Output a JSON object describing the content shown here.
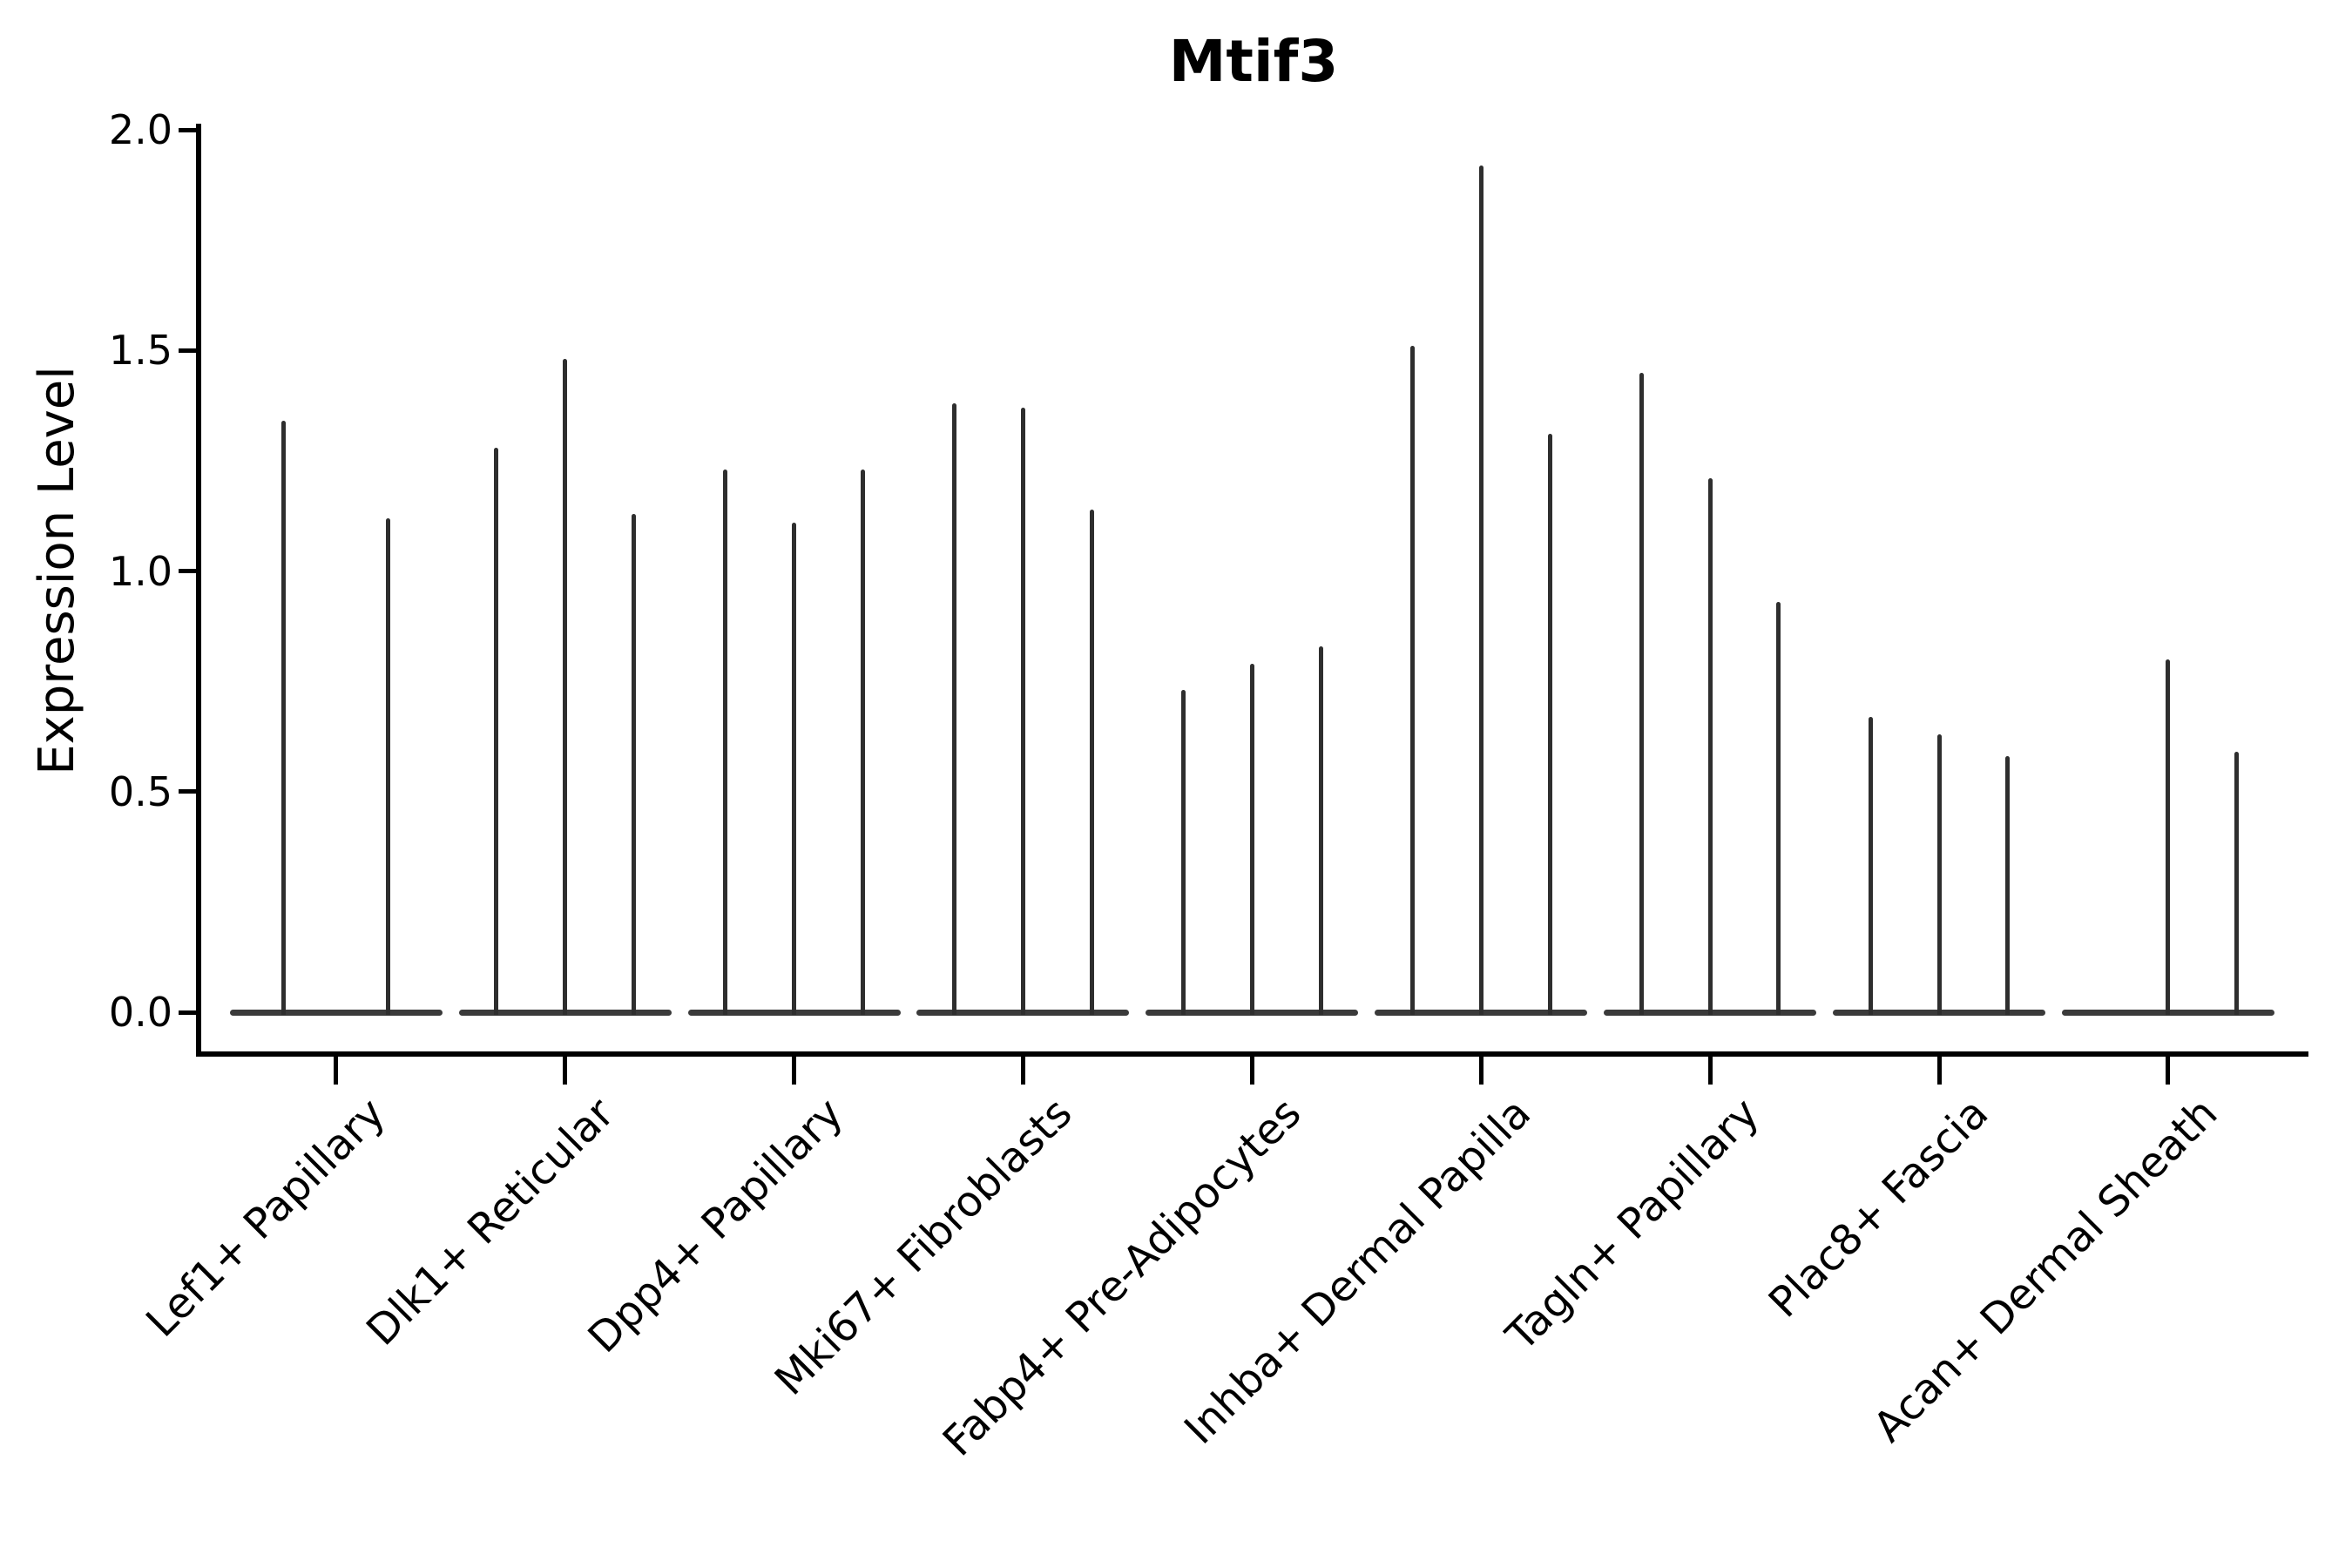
{
  "chart_data": {
    "type": "violin",
    "title": "Mtif3",
    "ylabel": "Expression Level",
    "xlabel": "",
    "ylim": [
      0.0,
      2.0
    ],
    "yticks": [
      0.0,
      0.5,
      1.0,
      1.5,
      2.0
    ],
    "ytick_labels": [
      "0.0",
      "0.5",
      "1.0",
      "1.5",
      "2.0"
    ],
    "grid": false,
    "legend": "none",
    "description": "Violin plot of sparse gene expression: each cluster shows a flat dark baseline at 0 with thin vertical density spikes reaching the maximum expression values.",
    "colors": {
      "spike": "#2e2e2e",
      "baseline_bar": "#3a3a3a",
      "axis": "#000000",
      "text": "#000000",
      "background": "#ffffff"
    },
    "categories": [
      "Lef1+ Papillary",
      "Dlk1+ Reticular",
      "Dpp4+ Papillary",
      "Mki67+ Fibroblasts",
      "Fabp4+ Pre-Adipocytes",
      "Inhba+ Dermal Papilla",
      "Tagln+ Papillary",
      "Plac8+ Fascia",
      "Acan+ Dermal Sheath"
    ],
    "groups": [
      {
        "category": "Lef1+ Papillary",
        "spike_maxima": [
          1.34,
          1.12
        ]
      },
      {
        "category": "Dlk1+ Reticular",
        "spike_maxima": [
          1.28,
          1.48,
          1.13
        ]
      },
      {
        "category": "Dpp4+ Papillary",
        "spike_maxima": [
          1.23,
          1.11,
          1.23
        ]
      },
      {
        "category": "Mki67+ Fibroblasts",
        "spike_maxima": [
          1.38,
          1.37,
          1.14
        ]
      },
      {
        "category": "Fabp4+ Pre-Adipocytes",
        "spike_maxima": [
          0.73,
          0.79,
          0.83
        ]
      },
      {
        "category": "Inhba+ Dermal Papilla",
        "spike_maxima": [
          1.51,
          1.92,
          1.31
        ]
      },
      {
        "category": "Tagln+ Papillary",
        "spike_maxima": [
          1.45,
          1.21,
          0.93
        ]
      },
      {
        "category": "Plac8+ Fascia",
        "spike_maxima": [
          0.67,
          0.63,
          0.58
        ]
      },
      {
        "category": "Acan+ Dermal Sheath",
        "spike_maxima": [
          null,
          0.8,
          0.59
        ]
      }
    ]
  }
}
